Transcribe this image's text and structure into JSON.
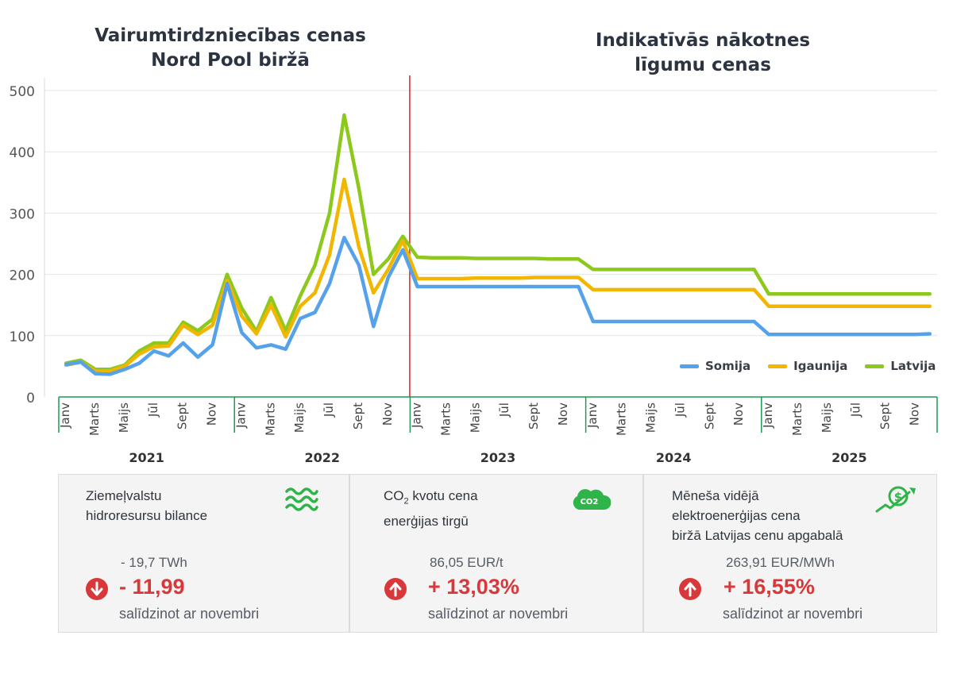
{
  "titles": {
    "left": "Vairumtirdzniecības cenas\nNord Pool biržā",
    "right": "Indikatīvās nākotnes\nlīgumu cenas"
  },
  "chart_data": {
    "type": "line",
    "ylim": [
      0,
      500
    ],
    "y_ticks": [
      "0",
      "100",
      "200",
      "300",
      "400",
      "500"
    ],
    "month_labels": [
      "Janv",
      "Marts",
      "Maijs",
      "Jūl",
      "Sept",
      "Nov"
    ],
    "years": [
      "2021",
      "2022",
      "2023",
      "2024",
      "2025"
    ],
    "divider_after_year": "2022",
    "series": [
      {
        "name": "Latvija",
        "color": "#8dc91d",
        "values": [
          55,
          60,
          45,
          45,
          52,
          75,
          88,
          88,
          122,
          108,
          127,
          200,
          145,
          107,
          162,
          108,
          165,
          215,
          300,
          460,
          340,
          200,
          225,
          262,
          228,
          227,
          227,
          227,
          226,
          226,
          226,
          226,
          226,
          225,
          225,
          225,
          208,
          208,
          208,
          208,
          208,
          208,
          208,
          208,
          208,
          208,
          208,
          208,
          168,
          168,
          168,
          168,
          168,
          168,
          168,
          168,
          168,
          168,
          168,
          168
        ]
      },
      {
        "name": "Igaunija",
        "color": "#f2b500",
        "values": [
          52,
          57,
          42,
          42,
          50,
          70,
          82,
          83,
          117,
          102,
          117,
          190,
          132,
          103,
          150,
          98,
          148,
          170,
          232,
          355,
          245,
          170,
          208,
          255,
          193,
          193,
          193,
          193,
          194,
          194,
          194,
          194,
          195,
          195,
          195,
          195,
          175,
          175,
          175,
          175,
          175,
          175,
          175,
          175,
          175,
          175,
          175,
          175,
          148,
          148,
          148,
          148,
          148,
          148,
          148,
          148,
          148,
          148,
          148,
          148
        ]
      },
      {
        "name": "Somija",
        "color": "#55a2ea",
        "values": [
          53,
          57,
          38,
          37,
          45,
          55,
          75,
          67,
          88,
          65,
          85,
          185,
          105,
          80,
          85,
          78,
          128,
          138,
          185,
          260,
          215,
          115,
          195,
          240,
          180,
          180,
          180,
          180,
          180,
          180,
          180,
          180,
          180,
          180,
          180,
          180,
          123,
          123,
          123,
          123,
          123,
          123,
          123,
          123,
          123,
          123,
          123,
          123,
          102,
          102,
          102,
          102,
          102,
          102,
          102,
          102,
          102,
          102,
          102,
          103
        ]
      }
    ]
  },
  "legend": [
    {
      "name": "Somija",
      "color": "#55a2ea"
    },
    {
      "name": "Igaunija",
      "color": "#f2b500"
    },
    {
      "name": "Latvija",
      "color": "#8dc91d"
    }
  ],
  "cards": [
    {
      "title_line1": "Ziemeļvalstu",
      "title_line2": "hidroresursu bilance",
      "icon": "water-waves-icon",
      "value": "- 19,7  TWh",
      "change": "- 11,99",
      "direction": "down",
      "compare": "salīdzinot ar novembri"
    },
    {
      "title_co": "CO",
      "title_sub": "2",
      "title_rest": " kvotu cena",
      "title_line2": "enerģijas tirgū",
      "icon": "co2-cloud-icon",
      "icon_text": "CO2",
      "value": "86,05 EUR/t",
      "change": "+ 13,03%",
      "direction": "up",
      "compare": "salīdzinot ar novembri"
    },
    {
      "title_line1": "Mēneša vidējā",
      "title_line2": "elektroenerģijas cena",
      "title_line3": "biržā Latvijas cenu apgabalā",
      "icon": "money-growth-icon",
      "value": "263,91 EUR/MWh",
      "change": "+ 16,55%",
      "direction": "up",
      "compare": "salīdzinot ar novembri"
    }
  ],
  "colors": {
    "axis_green": "#1a9a55",
    "divider_red": "#e02020",
    "negative_red": "#d9383a",
    "icon_green": "#2fb44a"
  }
}
